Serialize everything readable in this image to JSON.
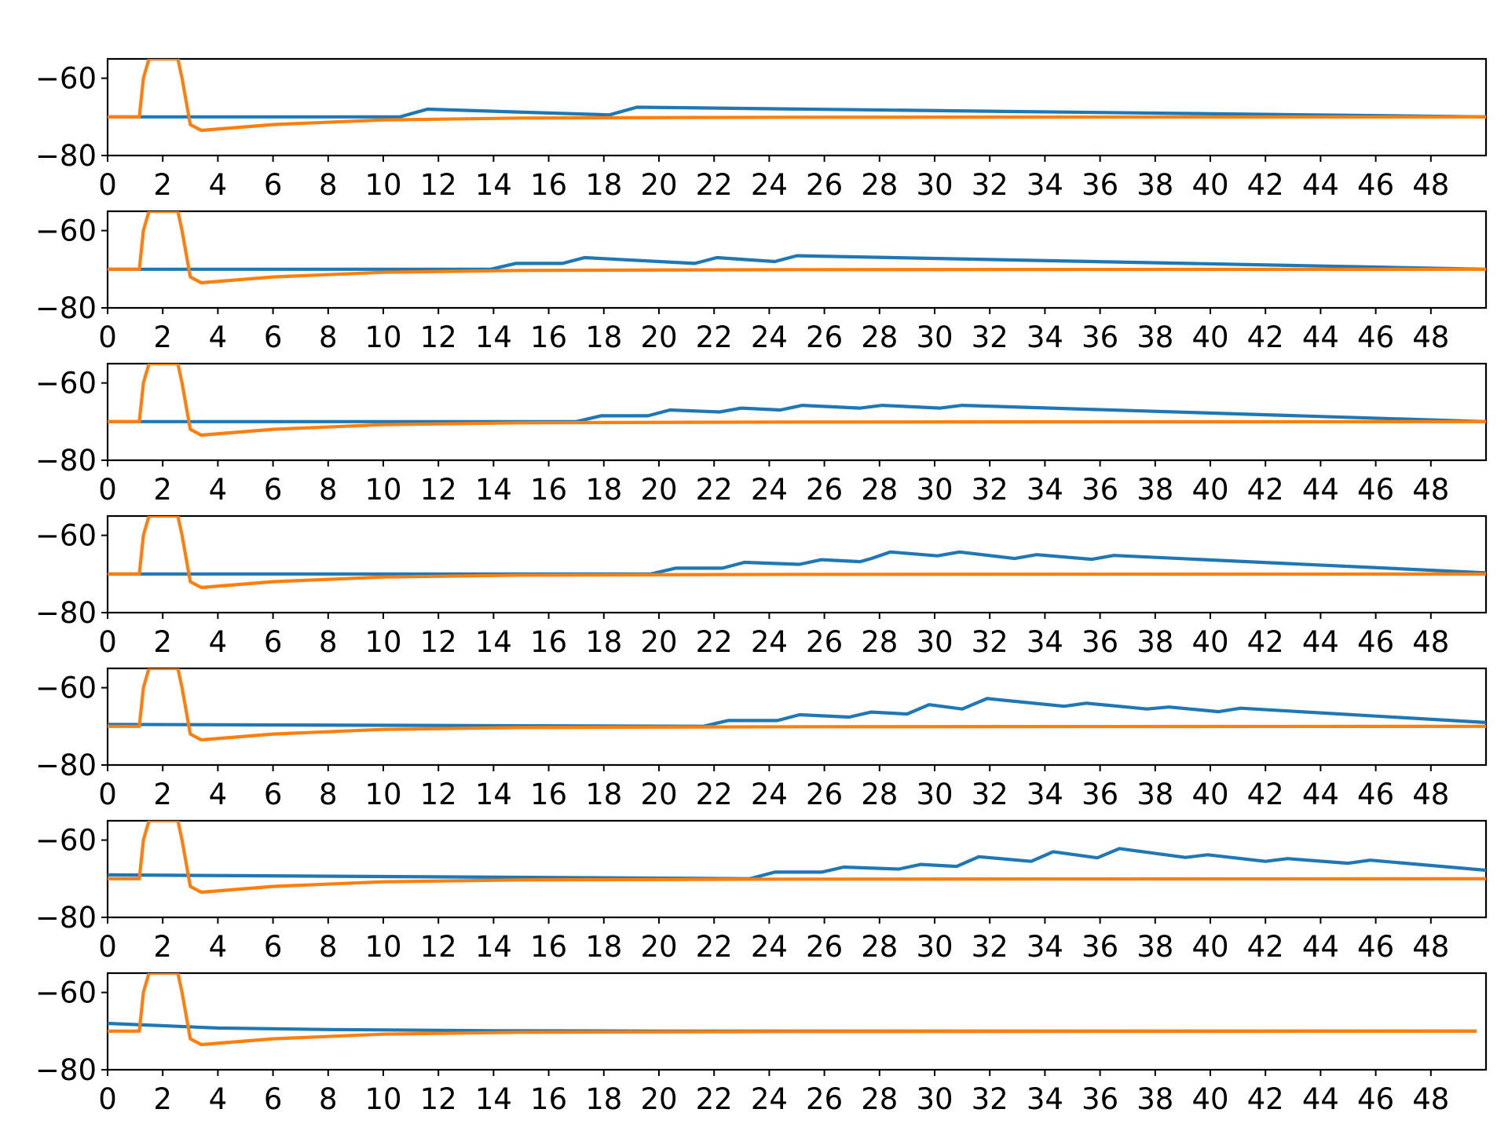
{
  "chart_data": [
    {
      "type": "line",
      "xlim": [
        0,
        50
      ],
      "ylim": [
        -80,
        -55
      ],
      "xticks": [
        "0",
        "2",
        "4",
        "6",
        "8",
        "10",
        "12",
        "14",
        "16",
        "18",
        "20",
        "22",
        "24",
        "26",
        "28",
        "30",
        "32",
        "34",
        "36",
        "38",
        "40",
        "42",
        "44",
        "46",
        "48"
      ],
      "yticks": [
        "−60",
        "−80"
      ],
      "grid": false,
      "series": [
        {
          "color": "#1f77b4",
          "x": [
            0,
            10.6,
            11.6,
            18.2,
            19.2,
            50
          ],
          "y": [
            -70,
            -70,
            -68,
            -69.5,
            -67.5,
            -70
          ]
        },
        {
          "color": "#ff7f0e",
          "x": [
            0,
            1.15,
            1.3,
            1.5,
            2.55,
            2.7,
            3.0,
            3.4,
            6,
            10,
            15,
            25,
            50
          ],
          "y": [
            -70,
            -70,
            -60,
            -55,
            -55,
            -60,
            -72,
            -73.5,
            -72,
            -70.8,
            -70.3,
            -70.1,
            -70
          ]
        }
      ]
    },
    {
      "type": "line",
      "xlim": [
        0,
        50
      ],
      "ylim": [
        -80,
        -55
      ],
      "xticks": [
        "0",
        "2",
        "4",
        "6",
        "8",
        "10",
        "12",
        "14",
        "16",
        "18",
        "20",
        "22",
        "24",
        "26",
        "28",
        "30",
        "32",
        "34",
        "36",
        "38",
        "40",
        "42",
        "44",
        "46",
        "48"
      ],
      "yticks": [
        "−60",
        "−80"
      ],
      "grid": false,
      "series": [
        {
          "color": "#1f77b4",
          "x": [
            0,
            13.9,
            14.8,
            16.5,
            17.3,
            21.3,
            22.1,
            24.2,
            25.0,
            50
          ],
          "y": [
            -70,
            -70,
            -68.5,
            -68.5,
            -67,
            -68.5,
            -67,
            -68,
            -66.5,
            -70
          ]
        },
        {
          "color": "#ff7f0e",
          "x": [
            0,
            1.15,
            1.3,
            1.5,
            2.55,
            2.7,
            3.0,
            3.4,
            6,
            10,
            15,
            25,
            50
          ],
          "y": [
            -70,
            -70,
            -60,
            -55,
            -55,
            -60,
            -72,
            -73.5,
            -72,
            -70.8,
            -70.3,
            -70.1,
            -70
          ]
        }
      ]
    },
    {
      "type": "line",
      "xlim": [
        0,
        50
      ],
      "ylim": [
        -80,
        -55
      ],
      "xticks": [
        "0",
        "2",
        "4",
        "6",
        "8",
        "10",
        "12",
        "14",
        "16",
        "18",
        "20",
        "22",
        "24",
        "26",
        "28",
        "30",
        "32",
        "34",
        "36",
        "38",
        "40",
        "42",
        "44",
        "46",
        "48"
      ],
      "yticks": [
        "−60",
        "−80"
      ],
      "grid": false,
      "series": [
        {
          "color": "#1f77b4",
          "x": [
            0,
            17.0,
            17.9,
            19.6,
            20.4,
            22.2,
            23.0,
            24.4,
            25.2,
            27.3,
            28.1,
            30.2,
            31.0,
            50
          ],
          "y": [
            -70,
            -70,
            -68.5,
            -68.5,
            -67,
            -67.5,
            -66.5,
            -67,
            -65.8,
            -66.5,
            -65.8,
            -66.5,
            -65.8,
            -70
          ]
        },
        {
          "color": "#ff7f0e",
          "x": [
            0,
            1.15,
            1.3,
            1.5,
            2.55,
            2.7,
            3.0,
            3.4,
            6,
            10,
            15,
            25,
            50
          ],
          "y": [
            -70,
            -70,
            -60,
            -55,
            -55,
            -60,
            -72,
            -73.5,
            -72,
            -70.8,
            -70.3,
            -70.1,
            -70
          ]
        }
      ]
    },
    {
      "type": "line",
      "xlim": [
        0,
        50
      ],
      "ylim": [
        -80,
        -55
      ],
      "xticks": [
        "0",
        "2",
        "4",
        "6",
        "8",
        "10",
        "12",
        "14",
        "16",
        "18",
        "20",
        "22",
        "24",
        "26",
        "28",
        "30",
        "32",
        "34",
        "36",
        "38",
        "40",
        "42",
        "44",
        "46",
        "48"
      ],
      "yticks": [
        "−60",
        "−80"
      ],
      "grid": false,
      "series": [
        {
          "color": "#1f77b4",
          "x": [
            0,
            19.7,
            20.6,
            22.3,
            23.1,
            25.1,
            25.9,
            27.3,
            27.7,
            28.4,
            30.1,
            30.9,
            32.9,
            33.7,
            35.7,
            36.5,
            50
          ],
          "y": [
            -70,
            -70,
            -68.5,
            -68.5,
            -67,
            -67.5,
            -66.3,
            -66.8,
            -66,
            -64.3,
            -65.3,
            -64.3,
            -66,
            -65,
            -66.2,
            -65.2,
            -69.7
          ]
        },
        {
          "color": "#ff7f0e",
          "x": [
            0,
            1.15,
            1.3,
            1.5,
            2.55,
            2.7,
            3.0,
            3.4,
            6,
            10,
            15,
            25,
            50
          ],
          "y": [
            -70,
            -70,
            -60,
            -55,
            -55,
            -60,
            -72,
            -73.5,
            -72,
            -70.8,
            -70.3,
            -70.1,
            -70
          ]
        }
      ]
    },
    {
      "type": "line",
      "xlim": [
        0,
        50
      ],
      "ylim": [
        -80,
        -55
      ],
      "xticks": [
        "0",
        "2",
        "4",
        "6",
        "8",
        "10",
        "12",
        "14",
        "16",
        "18",
        "20",
        "22",
        "24",
        "26",
        "28",
        "30",
        "32",
        "34",
        "36",
        "38",
        "40",
        "42",
        "44",
        "46",
        "48"
      ],
      "yticks": [
        "−60",
        "−80"
      ],
      "grid": false,
      "series": [
        {
          "color": "#1f77b4",
          "x": [
            0,
            21.6,
            22.5,
            24.3,
            25.1,
            26.9,
            27.7,
            29.0,
            29.8,
            31.0,
            31.9,
            34.7,
            35.5,
            37.7,
            38.5,
            40.3,
            41.1,
            50
          ],
          "y": [
            -69.5,
            -70,
            -68.5,
            -68.5,
            -67,
            -67.6,
            -66.3,
            -66.8,
            -64.4,
            -65.5,
            -62.8,
            -64.8,
            -64,
            -65.5,
            -65,
            -66.2,
            -65.3,
            -69
          ]
        },
        {
          "color": "#ff7f0e",
          "x": [
            0,
            1.15,
            1.3,
            1.5,
            2.55,
            2.7,
            3.0,
            3.4,
            6,
            10,
            15,
            25,
            50
          ],
          "y": [
            -70,
            -70,
            -60,
            -55,
            -55,
            -60,
            -72,
            -73.5,
            -72,
            -70.8,
            -70.3,
            -70.1,
            -70
          ]
        }
      ]
    },
    {
      "type": "line",
      "xlim": [
        0,
        50
      ],
      "ylim": [
        -80,
        -55
      ],
      "xticks": [
        "0",
        "2",
        "4",
        "6",
        "8",
        "10",
        "12",
        "14",
        "16",
        "18",
        "20",
        "22",
        "24",
        "26",
        "28",
        "30",
        "32",
        "34",
        "36",
        "38",
        "40",
        "42",
        "44",
        "46",
        "48"
      ],
      "yticks": [
        "−60",
        "−80"
      ],
      "grid": false,
      "series": [
        {
          "color": "#1f77b4",
          "x": [
            0,
            23.3,
            24.2,
            25.9,
            26.7,
            28.7,
            29.5,
            30.8,
            31.6,
            33.5,
            34.3,
            35.9,
            36.7,
            39.1,
            39.9,
            42.0,
            42.8,
            45.0,
            45.8,
            50
          ],
          "y": [
            -69,
            -70,
            -68.3,
            -68.3,
            -67,
            -67.5,
            -66.3,
            -66.8,
            -64.3,
            -65.5,
            -63,
            -64.6,
            -62.2,
            -64.5,
            -63.8,
            -65.5,
            -64.8,
            -66,
            -65.2,
            -67.8
          ]
        },
        {
          "color": "#ff7f0e",
          "x": [
            0,
            1.15,
            1.3,
            1.5,
            2.55,
            2.7,
            3.0,
            3.4,
            6,
            10,
            15,
            25,
            50
          ],
          "y": [
            -70,
            -70,
            -60,
            -55,
            -55,
            -60,
            -72,
            -73.5,
            -72,
            -70.8,
            -70.3,
            -70.1,
            -70
          ]
        }
      ]
    },
    {
      "type": "line",
      "xlim": [
        0,
        50
      ],
      "ylim": [
        -80,
        -55
      ],
      "xticks": [
        "0",
        "2",
        "4",
        "6",
        "8",
        "10",
        "12",
        "14",
        "16",
        "18",
        "20",
        "22",
        "24",
        "26",
        "28",
        "30",
        "32",
        "34",
        "36",
        "38",
        "40",
        "42",
        "44",
        "46",
        "48"
      ],
      "yticks": [
        "−60",
        "−80"
      ],
      "grid": false,
      "series": [
        {
          "color": "#1f77b4",
          "x": [
            0,
            4,
            8,
            14,
            20,
            30,
            49.6
          ],
          "y": [
            -68,
            -69.2,
            -69.6,
            -69.9,
            -70,
            -70,
            -70
          ]
        },
        {
          "color": "#ff7f0e",
          "x": [
            0,
            1.15,
            1.3,
            1.5,
            2.55,
            2.7,
            3.0,
            3.4,
            6,
            10,
            15,
            25,
            49.6
          ],
          "y": [
            -70,
            -70,
            -60,
            -55,
            -55,
            -60,
            -72,
            -73.5,
            -72,
            -70.8,
            -70.3,
            -70.1,
            -70
          ]
        }
      ]
    }
  ]
}
